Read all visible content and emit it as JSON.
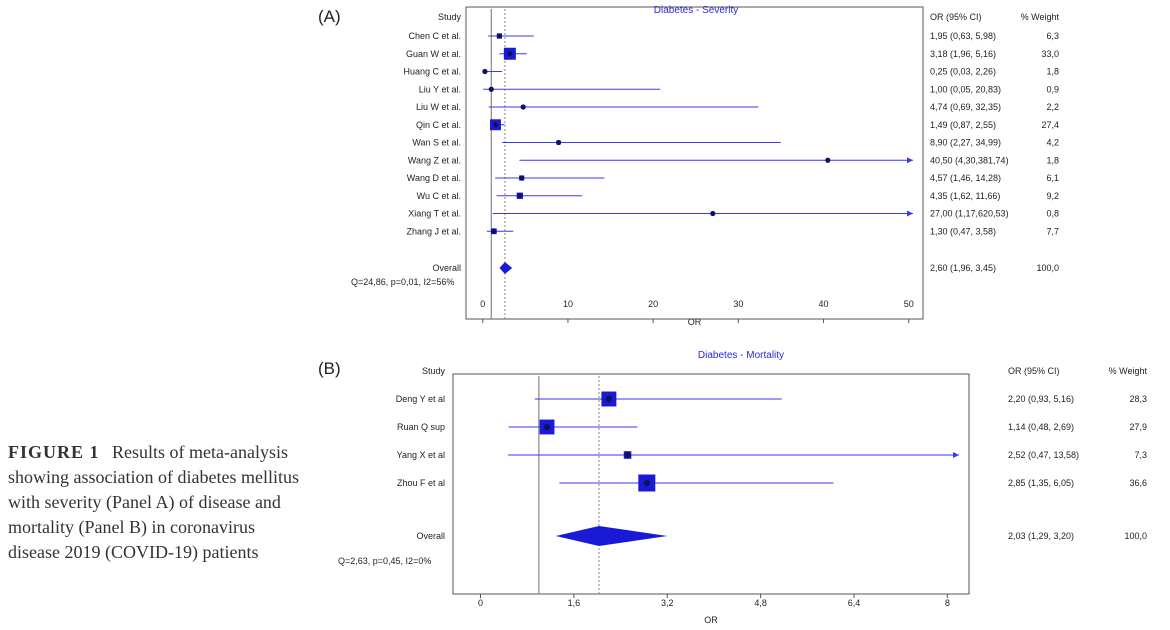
{
  "caption": {
    "figure_label": "FIGURE 1",
    "text": "Results of meta-analysis showing association of diabetes mellitus with severity (Panel A) of disease and mortality (Panel B) in coronavirus disease 2019 (COVID-19) patients"
  },
  "colors": {
    "marker": "#1a1ad6",
    "line": "#3a3af0",
    "axis": "#555555",
    "ref": "#888888"
  },
  "chart_data": [
    {
      "type": "forest",
      "panel_label": "(A)",
      "title": "Diabetes - Severity",
      "study_header": "Study",
      "ci_header": "OR (95% CI)",
      "weight_header": "% Weight",
      "xlabel": "OR",
      "xlim": [
        -1.5,
        50.5
      ],
      "xticks": [
        "0",
        "10",
        "20",
        "30",
        "40",
        "50"
      ],
      "xtick_values": [
        0,
        10,
        20,
        30,
        40,
        50
      ],
      "null_line": 1,
      "pooled_line": 2.6,
      "studies": [
        {
          "name": "Chen C et al.",
          "or": 1.95,
          "lo": 0.63,
          "hi": 5.98,
          "ci_text": "1,95 (0,63, 5,98)",
          "weight": "6,3"
        },
        {
          "name": "Guan W et al.",
          "or": 3.18,
          "lo": 1.96,
          "hi": 5.16,
          "ci_text": "3,18 (1,96, 5,16)",
          "weight": "33,0"
        },
        {
          "name": "Huang C et al.",
          "or": 0.25,
          "lo": 0.03,
          "hi": 2.26,
          "ci_text": "0,25 (0,03, 2,26)",
          "weight": "1,8"
        },
        {
          "name": "Liu Y et al.",
          "or": 1.0,
          "lo": 0.05,
          "hi": 20.83,
          "ci_text": "1,00 (0,05, 20,83)",
          "weight": "0,9"
        },
        {
          "name": "Liu W et al.",
          "or": 4.74,
          "lo": 0.69,
          "hi": 32.35,
          "ci_text": "4,74 (0,69, 32,35)",
          "weight": "2,2"
        },
        {
          "name": "Qin C et al.",
          "or": 1.49,
          "lo": 0.87,
          "hi": 2.55,
          "ci_text": "1,49 (0,87, 2,55)",
          "weight": "27,4"
        },
        {
          "name": "Wan S et al.",
          "or": 8.9,
          "lo": 2.27,
          "hi": 34.99,
          "ci_text": "8,90 (2,27, 34,99)",
          "weight": "4,2"
        },
        {
          "name": "Wang Z et al.",
          "or": 40.5,
          "lo": 4.3,
          "hi": 381.74,
          "ci_text": "40,50 (4,30,381,74)",
          "weight": "1,8"
        },
        {
          "name": "Wang D et al.",
          "or": 4.57,
          "lo": 1.46,
          "hi": 14.28,
          "ci_text": "4,57 (1,46, 14,28)",
          "weight": "6,1"
        },
        {
          "name": "Wu C et al.",
          "or": 4.35,
          "lo": 1.62,
          "hi": 11.66,
          "ci_text": "4,35 (1,62, 11,66)",
          "weight": "9,2"
        },
        {
          "name": "Xiang T et al.",
          "or": 27.0,
          "lo": 1.17,
          "hi": 620.53,
          "ci_text": "27,00 (1,17,620,53)",
          "weight": "0,8"
        },
        {
          "name": "Zhang J et al.",
          "or": 1.3,
          "lo": 0.47,
          "hi": 3.58,
          "ci_text": "1,30 (0,47, 3,58)",
          "weight": "7,7"
        }
      ],
      "overall": {
        "name": "Overall",
        "or": 2.6,
        "lo": 1.96,
        "hi": 3.45,
        "ci_text": "2,60 (1,96, 3,45)",
        "weight": "100,0"
      },
      "heterogeneity": "Q=24,86, p=0,01, I2=56%"
    },
    {
      "type": "forest",
      "panel_label": "(B)",
      "title": "Diabetes - Mortality",
      "study_header": "Study",
      "ci_header": "OR (95% CI)",
      "weight_header": "% Weight",
      "xlabel": "OR",
      "xlim": [
        -0.3,
        8.2
      ],
      "xticks": [
        "0",
        "1,6",
        "3,2",
        "4,8",
        "6,4",
        "8"
      ],
      "xtick_values": [
        0,
        1.6,
        3.2,
        4.8,
        6.4,
        8
      ],
      "null_line": 1,
      "pooled_line": 2.03,
      "studies": [
        {
          "name": "Deng Y et al",
          "or": 2.2,
          "lo": 0.93,
          "hi": 5.16,
          "ci_text": "2,20 (0,93, 5,16)",
          "weight": "28,3"
        },
        {
          "name": "Ruan Q sup",
          "or": 1.14,
          "lo": 0.48,
          "hi": 2.69,
          "ci_text": "1,14 (0,48, 2,69)",
          "weight": "27,9"
        },
        {
          "name": "Yang X et al",
          "or": 2.52,
          "lo": 0.47,
          "hi": 13.58,
          "ci_text": "2,52 (0,47, 13,58)",
          "weight": "7,3"
        },
        {
          "name": "Zhou F et al",
          "or": 2.85,
          "lo": 1.35,
          "hi": 6.05,
          "ci_text": "2,85 (1,35, 6,05)",
          "weight": "36,6"
        }
      ],
      "overall": {
        "name": "Overall",
        "or": 2.03,
        "lo": 1.29,
        "hi": 3.2,
        "ci_text": "2,03 (1,29, 3,20)",
        "weight": "100,0"
      },
      "heterogeneity": "Q=2,63, p=0,45, I2=0%"
    }
  ]
}
